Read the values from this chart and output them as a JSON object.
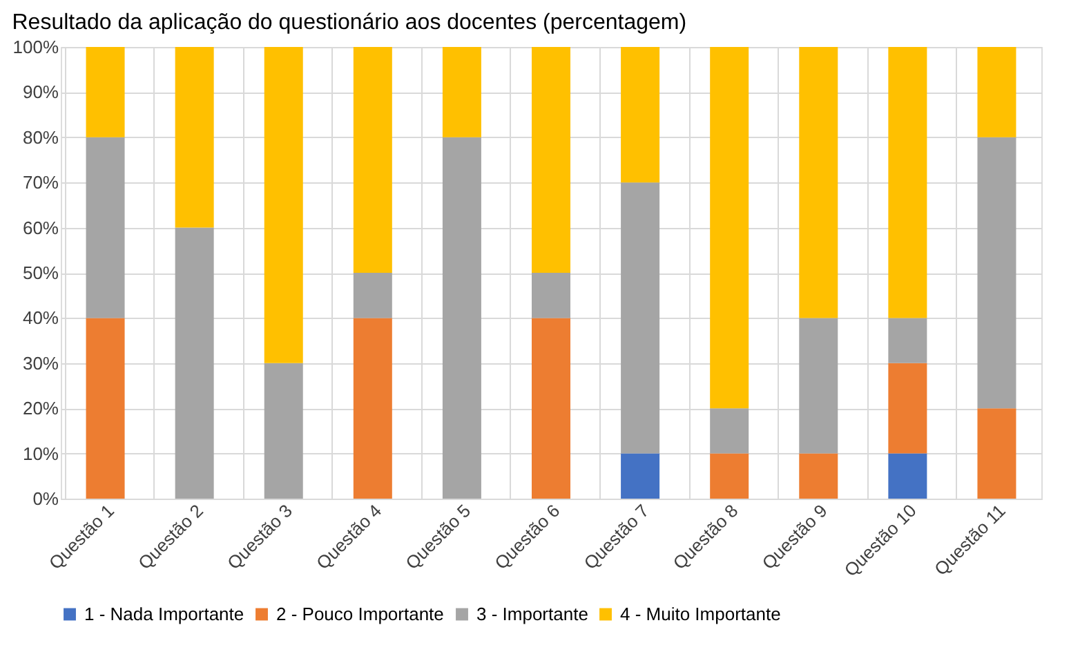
{
  "chart_data": {
    "type": "bar",
    "stacked": true,
    "title": "Resultado da aplicação do questionário aos docentes (percentagem)",
    "categories": [
      "Questão 1",
      "Questão 2",
      "Questão 3",
      "Questão 4",
      "Questão 5",
      "Questão 6",
      "Questão 7",
      "Questão 8",
      "Questão 9",
      "Questão 10",
      "Questão 11"
    ],
    "series": [
      {
        "name": "1 - Nada Importante",
        "color": "#4472c4",
        "values": [
          0,
          0,
          0,
          0,
          0,
          0,
          10,
          0,
          0,
          10,
          0
        ]
      },
      {
        "name": "2 - Pouco Importante",
        "color": "#ed7d31",
        "values": [
          40,
          0,
          0,
          40,
          0,
          40,
          0,
          10,
          10,
          20,
          20
        ]
      },
      {
        "name": "3 - Importante",
        "color": "#a5a5a5",
        "values": [
          40,
          60,
          30,
          10,
          80,
          10,
          60,
          10,
          30,
          10,
          60
        ]
      },
      {
        "name": "4 - Muito Importante",
        "color": "#ffc000",
        "values": [
          20,
          40,
          70,
          50,
          20,
          50,
          30,
          80,
          60,
          60,
          20
        ]
      }
    ],
    "ylim": [
      0,
      100
    ],
    "yticks": [
      {
        "value": 0,
        "label": "0%"
      },
      {
        "value": 10,
        "label": "10%"
      },
      {
        "value": 20,
        "label": "20%"
      },
      {
        "value": 30,
        "label": "30%"
      },
      {
        "value": 40,
        "label": "40%"
      },
      {
        "value": 50,
        "label": "50%"
      },
      {
        "value": 60,
        "label": "60%"
      },
      {
        "value": 70,
        "label": "70%"
      },
      {
        "value": 80,
        "label": "80%"
      },
      {
        "value": 90,
        "label": "90%"
      },
      {
        "value": 100,
        "label": "100%"
      }
    ],
    "grid": true,
    "legend": "bottom"
  }
}
